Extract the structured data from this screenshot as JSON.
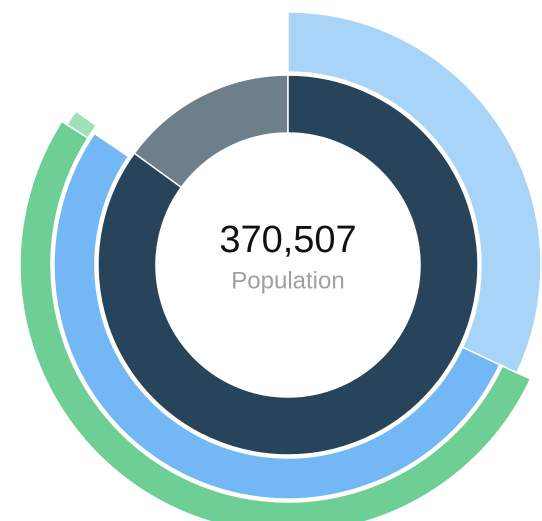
{
  "chart_data": {
    "type": "sunburst",
    "center_value": "370,507",
    "center_caption": "Population",
    "rings": [
      {
        "values": [
          85,
          15
        ],
        "colors": [
          "#27445a",
          "#6e7f8c"
        ]
      },
      {
        "values": [
          32,
          52.5
        ],
        "colors": [
          "#a8d4f7",
          "#73b8f5"
        ]
      },
      {
        "values": [
          52,
          1
        ],
        "colors": [
          "#6ecf95",
          "#9fe0b8"
        ]
      }
    ]
  }
}
